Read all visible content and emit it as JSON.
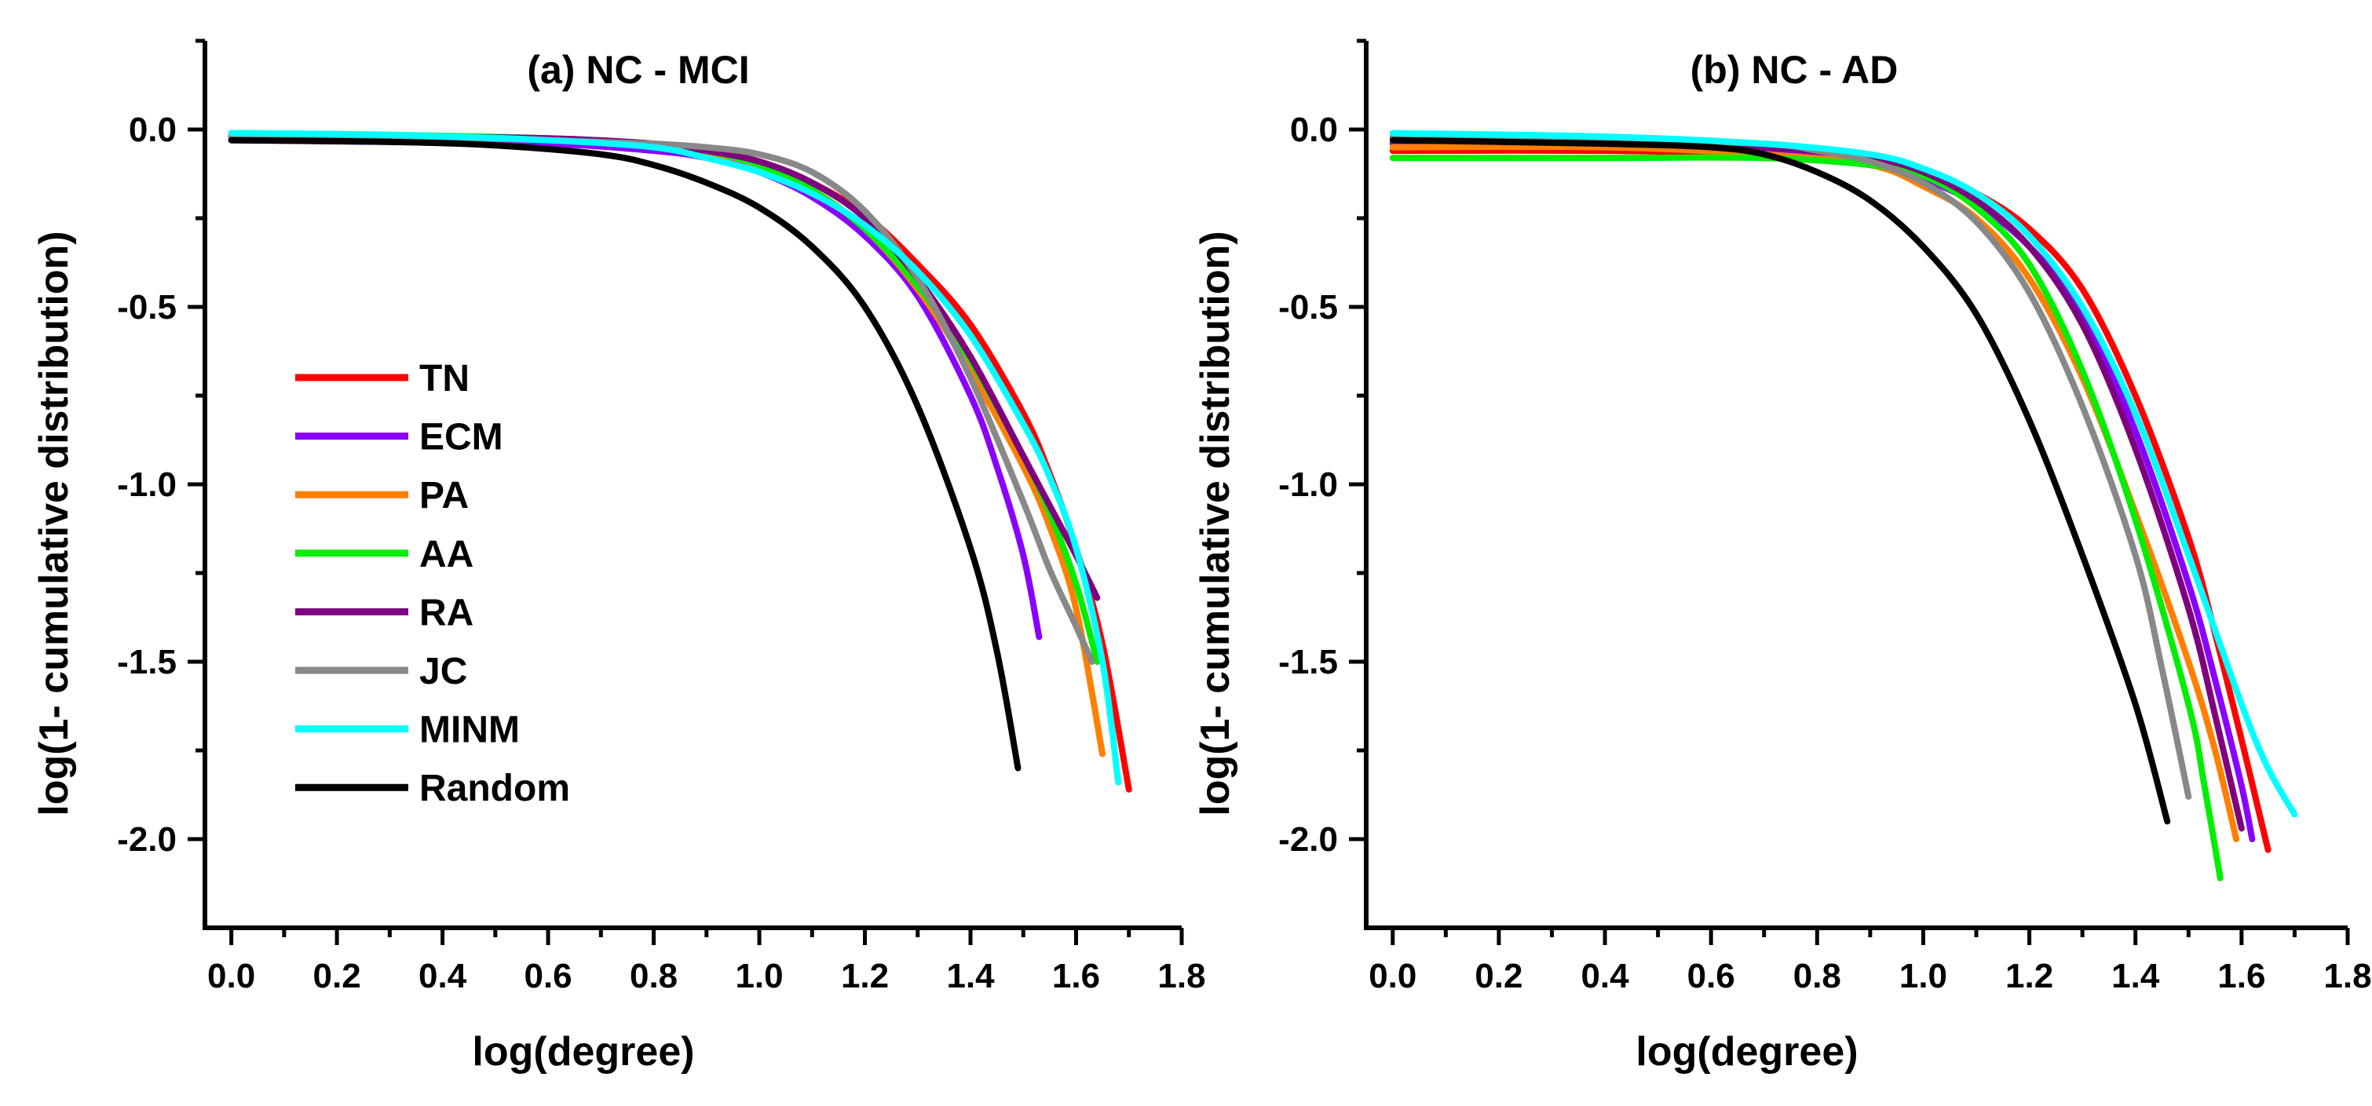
{
  "chart_data": [
    {
      "type": "line",
      "title": "(a) NC - MCI",
      "xlabel": "log(degree)",
      "ylabel": "log(1- cumulative distribution)",
      "xlim": [
        -0.05,
        1.8
      ],
      "ylim": [
        -2.25,
        0.25
      ],
      "xticks": [
        "0.0",
        "0.2",
        "0.4",
        "0.6",
        "0.8",
        "1.0",
        "1.2",
        "1.4",
        "1.6",
        "1.8"
      ],
      "yticks": [
        "0.0",
        "-0.5",
        "-1.0",
        "-1.5",
        "-2.0"
      ],
      "legend_position": "left-middle",
      "series": [
        {
          "name": "TN",
          "color": "#ff0000",
          "x": [
            0,
            0.3,
            0.6,
            0.8,
            0.9,
            1.0,
            1.1,
            1.2,
            1.3,
            1.4,
            1.5,
            1.55,
            1.6,
            1.65,
            1.7
          ],
          "y": [
            -0.02,
            -0.025,
            -0.03,
            -0.045,
            -0.06,
            -0.09,
            -0.15,
            -0.24,
            -0.38,
            -0.55,
            -0.8,
            -0.97,
            -1.18,
            -1.45,
            -1.86
          ]
        },
        {
          "name": "ECM",
          "color": "#8a00ff",
          "x": [
            0,
            0.3,
            0.6,
            0.8,
            0.9,
            1.0,
            1.1,
            1.2,
            1.3,
            1.4,
            1.45,
            1.5,
            1.53
          ],
          "y": [
            -0.03,
            -0.035,
            -0.04,
            -0.06,
            -0.08,
            -0.12,
            -0.19,
            -0.3,
            -0.47,
            -0.75,
            -0.95,
            -1.2,
            -1.43
          ]
        },
        {
          "name": "PA",
          "color": "#ff7f00",
          "x": [
            0,
            0.3,
            0.6,
            0.8,
            0.9,
            1.0,
            1.1,
            1.2,
            1.3,
            1.4,
            1.5,
            1.55,
            1.6,
            1.65
          ],
          "y": [
            -0.02,
            -0.02,
            -0.03,
            -0.045,
            -0.065,
            -0.1,
            -0.17,
            -0.28,
            -0.45,
            -0.68,
            -0.95,
            -1.12,
            -1.35,
            -1.76
          ]
        },
        {
          "name": "AA",
          "color": "#00ee00",
          "x": [
            0,
            0.3,
            0.6,
            0.8,
            0.9,
            1.0,
            1.1,
            1.2,
            1.3,
            1.4,
            1.5,
            1.55,
            1.6,
            1.64
          ],
          "y": [
            -0.01,
            -0.015,
            -0.025,
            -0.04,
            -0.06,
            -0.1,
            -0.17,
            -0.28,
            -0.44,
            -0.65,
            -0.92,
            -1.08,
            -1.28,
            -1.5
          ]
        },
        {
          "name": "RA",
          "color": "#7f007f",
          "x": [
            0,
            0.3,
            0.6,
            0.8,
            0.9,
            1.0,
            1.1,
            1.2,
            1.3,
            1.4,
            1.5,
            1.55,
            1.6,
            1.64
          ],
          "y": [
            -0.02,
            -0.02,
            -0.025,
            -0.04,
            -0.06,
            -0.09,
            -0.15,
            -0.25,
            -0.42,
            -0.64,
            -0.92,
            -1.06,
            -1.2,
            -1.32
          ]
        },
        {
          "name": "JC",
          "color": "#888888",
          "x": [
            0,
            0.3,
            0.6,
            0.8,
            0.9,
            1.0,
            1.1,
            1.2,
            1.3,
            1.4,
            1.5,
            1.55,
            1.6,
            1.63
          ],
          "y": [
            -0.02,
            -0.02,
            -0.03,
            -0.04,
            -0.05,
            -0.07,
            -0.12,
            -0.23,
            -0.42,
            -0.7,
            -1.05,
            -1.24,
            -1.4,
            -1.5
          ]
        },
        {
          "name": "MINM",
          "color": "#00ffff",
          "x": [
            0,
            0.3,
            0.6,
            0.8,
            0.9,
            1.0,
            1.1,
            1.2,
            1.3,
            1.4,
            1.5,
            1.55,
            1.6,
            1.65,
            1.68
          ],
          "y": [
            -0.01,
            -0.015,
            -0.03,
            -0.05,
            -0.08,
            -0.12,
            -0.18,
            -0.27,
            -0.4,
            -0.58,
            -0.83,
            -0.98,
            -1.18,
            -1.5,
            -1.84
          ]
        },
        {
          "name": "Random",
          "color": "#000000",
          "x": [
            0,
            0.3,
            0.5,
            0.7,
            0.8,
            0.9,
            1.0,
            1.1,
            1.2,
            1.3,
            1.4,
            1.45,
            1.49
          ],
          "y": [
            -0.03,
            -0.035,
            -0.045,
            -0.07,
            -0.1,
            -0.15,
            -0.22,
            -0.33,
            -0.5,
            -0.78,
            -1.18,
            -1.47,
            -1.8
          ]
        }
      ]
    },
    {
      "type": "line",
      "title": "(b) NC - AD",
      "xlabel": "log(degree)",
      "ylabel": "log(1- cumulative distribution)",
      "xlim": [
        -0.05,
        1.8
      ],
      "ylim": [
        -2.25,
        0.25
      ],
      "xticks": [
        "0.0",
        "0.2",
        "0.4",
        "0.6",
        "0.8",
        "1.0",
        "1.2",
        "1.4",
        "1.6",
        "1.8"
      ],
      "yticks": [
        "0.0",
        "-0.5",
        "-1.0",
        "-1.5",
        "-2.0"
      ],
      "legend_position": "none",
      "series": [
        {
          "name": "TN",
          "color": "#ff0000",
          "x": [
            0,
            0.4,
            0.7,
            0.9,
            1.0,
            1.1,
            1.2,
            1.3,
            1.4,
            1.5,
            1.55,
            1.6,
            1.65
          ],
          "y": [
            -0.06,
            -0.06,
            -0.07,
            -0.09,
            -0.12,
            -0.18,
            -0.28,
            -0.45,
            -0.75,
            -1.15,
            -1.42,
            -1.72,
            -2.03
          ]
        },
        {
          "name": "ECM",
          "color": "#8a00ff",
          "x": [
            0,
            0.4,
            0.7,
            0.9,
            1.0,
            1.1,
            1.2,
            1.3,
            1.4,
            1.5,
            1.55,
            1.6,
            1.62
          ],
          "y": [
            -0.04,
            -0.05,
            -0.06,
            -0.1,
            -0.14,
            -0.21,
            -0.33,
            -0.52,
            -0.85,
            -1.28,
            -1.55,
            -1.85,
            -2.0
          ]
        },
        {
          "name": "PA",
          "color": "#ff7f00",
          "x": [
            0,
            0.4,
            0.7,
            0.9,
            1.0,
            1.1,
            1.2,
            1.3,
            1.4,
            1.5,
            1.55,
            1.59
          ],
          "y": [
            -0.05,
            -0.05,
            -0.07,
            -0.1,
            -0.16,
            -0.25,
            -0.42,
            -0.7,
            -1.08,
            -1.5,
            -1.75,
            -2.0
          ]
        },
        {
          "name": "AA",
          "color": "#00ee00",
          "x": [
            0,
            0.4,
            0.7,
            0.9,
            1.0,
            1.1,
            1.2,
            1.3,
            1.4,
            1.5,
            1.53,
            1.56
          ],
          "y": [
            -0.08,
            -0.08,
            -0.08,
            -0.1,
            -0.13,
            -0.22,
            -0.38,
            -0.68,
            -1.1,
            -1.62,
            -1.85,
            -2.11
          ]
        },
        {
          "name": "RA",
          "color": "#7f007f",
          "x": [
            0,
            0.4,
            0.7,
            0.9,
            1.0,
            1.1,
            1.2,
            1.3,
            1.4,
            1.5,
            1.55,
            1.6
          ],
          "y": [
            -0.02,
            -0.03,
            -0.05,
            -0.08,
            -0.12,
            -0.2,
            -0.33,
            -0.55,
            -0.9,
            -1.35,
            -1.65,
            -1.97
          ]
        },
        {
          "name": "JC",
          "color": "#888888",
          "x": [
            0,
            0.4,
            0.7,
            0.8,
            0.9,
            1.0,
            1.1,
            1.2,
            1.3,
            1.4,
            1.45,
            1.5
          ],
          "y": [
            -0.02,
            -0.03,
            -0.04,
            -0.06,
            -0.09,
            -0.15,
            -0.26,
            -0.46,
            -0.78,
            -1.2,
            -1.52,
            -1.88
          ]
        },
        {
          "name": "MINM",
          "color": "#00ffff",
          "x": [
            0,
            0.4,
            0.7,
            0.9,
            1.0,
            1.1,
            1.2,
            1.3,
            1.4,
            1.5,
            1.6,
            1.65,
            1.7
          ],
          "y": [
            -0.01,
            -0.02,
            -0.04,
            -0.07,
            -0.11,
            -0.18,
            -0.3,
            -0.5,
            -0.8,
            -1.2,
            -1.62,
            -1.8,
            -1.93
          ]
        },
        {
          "name": "Random",
          "color": "#000000",
          "x": [
            0,
            0.4,
            0.6,
            0.7,
            0.8,
            0.9,
            1.0,
            1.1,
            1.2,
            1.3,
            1.4,
            1.46
          ],
          "y": [
            -0.03,
            -0.04,
            -0.05,
            -0.07,
            -0.12,
            -0.2,
            -0.33,
            -0.52,
            -0.82,
            -1.2,
            -1.62,
            -1.95
          ]
        }
      ]
    }
  ]
}
